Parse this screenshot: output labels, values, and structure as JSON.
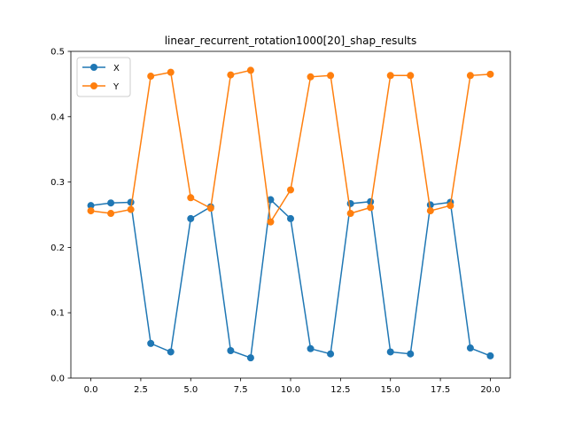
{
  "chart_data": {
    "type": "line",
    "title": "linear_recurrent_rotation1000[20]_shap_results",
    "xlabel": "",
    "ylabel": "",
    "xlim": [
      -1,
      21
    ],
    "ylim": [
      0,
      0.5
    ],
    "xticks": [
      0.0,
      2.5,
      5.0,
      7.5,
      10.0,
      12.5,
      15.0,
      17.5,
      20.0
    ],
    "xtick_labels": [
      "0.0",
      "2.5",
      "5.0",
      "7.5",
      "10.0",
      "12.5",
      "15.0",
      "17.5",
      "20.0"
    ],
    "yticks": [
      0.0,
      0.1,
      0.2,
      0.3,
      0.4,
      0.5
    ],
    "ytick_labels": [
      "0.0",
      "0.1",
      "0.2",
      "0.3",
      "0.4",
      "0.5"
    ],
    "grid": false,
    "legend_position": "top-left",
    "x": [
      0,
      1,
      2,
      3,
      4,
      5,
      6,
      7,
      8,
      9,
      10,
      11,
      12,
      13,
      14,
      15,
      16,
      17,
      18,
      19,
      20
    ],
    "series": [
      {
        "name": "X",
        "color": "#1f77b4",
        "values": [
          0.264,
          0.268,
          0.269,
          0.053,
          0.04,
          0.244,
          0.262,
          0.042,
          0.031,
          0.273,
          0.244,
          0.045,
          0.037,
          0.267,
          0.27,
          0.04,
          0.037,
          0.265,
          0.269,
          0.046,
          0.034
        ]
      },
      {
        "name": "Y",
        "color": "#ff7f0e",
        "values": [
          0.256,
          0.252,
          0.258,
          0.462,
          0.468,
          0.276,
          0.26,
          0.464,
          0.471,
          0.239,
          0.288,
          0.461,
          0.463,
          0.252,
          0.261,
          0.463,
          0.463,
          0.256,
          0.264,
          0.463,
          0.465
        ]
      }
    ]
  }
}
